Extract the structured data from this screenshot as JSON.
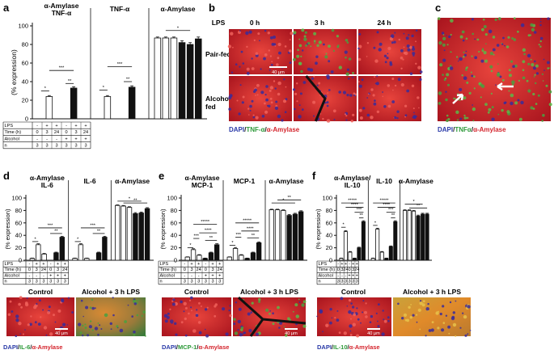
{
  "panels": {
    "a": "a",
    "b": "b",
    "c": "c",
    "d": "d",
    "e": "e",
    "f": "f"
  },
  "ylabel": "(% expression)",
  "yticks": [
    "0",
    "20",
    "40",
    "60",
    "80",
    "100"
  ],
  "row_labels": {
    "lps": "LPS",
    "time": "Time (h)",
    "alcohol": "Alcohol",
    "n": "n"
  },
  "table_values": {
    "lps": [
      "-",
      "+",
      "+",
      "-",
      "+",
      "+"
    ],
    "time": [
      "0",
      "3",
      "24",
      "0",
      "3",
      "24"
    ],
    "alcohol": [
      "-",
      "-",
      "-",
      "+",
      "+",
      "+"
    ],
    "n": [
      "3",
      "3",
      "3",
      "3",
      "3",
      "3"
    ]
  },
  "colors": {
    "control_bar": "#ffffff",
    "alcohol_bar": "#111111",
    "red": "#d4242c",
    "green": "#2e9a3a",
    "blue": "#2a3aa8"
  },
  "panel_a": {
    "titles": [
      "α-Amylase\nTNF-α",
      "TNF-α",
      "α-Amylase"
    ],
    "chart_data": {
      "type": "bar",
      "ylim": [
        0,
        100
      ],
      "groups": [
        {
          "title": "α-Amylase TNF-α",
          "values": [
            0,
            24,
            0,
            0,
            33,
            0
          ],
          "errors": [
            0,
            1,
            0,
            0,
            1.5,
            0
          ]
        },
        {
          "title": "TNF-α",
          "values": [
            0,
            24,
            0,
            0,
            34,
            0
          ],
          "errors": [
            0,
            1,
            0,
            0,
            1.5,
            0
          ]
        },
        {
          "title": "α-Amylase",
          "values": [
            87,
            87,
            87,
            82,
            80,
            86
          ],
          "errors": [
            1,
            1,
            1,
            2,
            2,
            2
          ]
        }
      ],
      "significance": [
        "*",
        "**",
        "***",
        "*",
        "**",
        "***",
        "*"
      ]
    }
  },
  "panel_b": {
    "lps": "LPS",
    "time_labels": [
      "0 h",
      "3 h",
      "24 h"
    ],
    "row_labels": [
      "Pair-fed",
      "Alcohol-\nfed"
    ],
    "scale": "40 μm",
    "legend": [
      {
        "t": "DAPI",
        "c": "blue"
      },
      {
        "t": "/",
        "c": "k"
      },
      {
        "t": "TNF-α",
        "c": "green"
      },
      {
        "t": "/",
        "c": "k"
      },
      {
        "t": "α-Amylase",
        "c": "red"
      }
    ]
  },
  "panel_c": {
    "legend": [
      {
        "t": "DAPI",
        "c": "blue"
      },
      {
        "t": "/",
        "c": "k"
      },
      {
        "t": "TNFα",
        "c": "green"
      },
      {
        "t": "/",
        "c": "k"
      },
      {
        "t": "α-Amylase",
        "c": "red"
      }
    ]
  },
  "panel_d": {
    "titles": [
      "α-Amylase\nIL-6",
      "IL-6",
      "α-Amylase"
    ],
    "chart_data": {
      "type": "bar",
      "ylim": [
        0,
        100
      ],
      "groups": [
        {
          "title": "α-Amylase IL-6",
          "values": [
            3,
            25,
            10,
            0,
            12,
            37
          ],
          "errors": [
            0.5,
            1.5,
            1,
            0,
            1,
            1.5
          ]
        },
        {
          "title": "IL-6",
          "values": [
            3,
            25,
            3,
            0,
            12,
            37
          ],
          "errors": [
            0.5,
            1.5,
            0.5,
            0,
            1,
            1.5
          ]
        },
        {
          "title": "α-Amylase",
          "values": [
            88,
            87,
            85,
            75,
            76,
            83
          ],
          "errors": [
            1,
            1,
            1,
            1.5,
            1.5,
            1.5
          ]
        }
      ],
      "significance": [
        "*",
        "**",
        "***",
        "*",
        "**",
        "***",
        "*",
        "**"
      ]
    },
    "image_labels": [
      "Control",
      "Alcohol + 3 h LPS"
    ],
    "scale": "40 μm",
    "legend": [
      {
        "t": "DAPI",
        "c": "blue"
      },
      {
        "t": "/",
        "c": "k"
      },
      {
        "t": "IL-6",
        "c": "green"
      },
      {
        "t": "/",
        "c": "k"
      },
      {
        "t": "α-Amylase",
        "c": "red"
      }
    ]
  },
  "panel_e": {
    "titles": [
      "α-Amylase\nMCP-1",
      "MCP-1",
      "α-Amylase"
    ],
    "chart_data": {
      "type": "bar",
      "ylim": [
        0,
        100
      ],
      "groups": [
        {
          "title": "α-Amylase MCP-1",
          "values": [
            5,
            17,
            8,
            3,
            12,
            25
          ],
          "errors": [
            0.5,
            1.5,
            1,
            0.5,
            1,
            1.5
          ]
        },
        {
          "title": "MCP-1",
          "values": [
            5,
            19,
            8,
            3,
            12,
            28
          ],
          "errors": [
            0.5,
            1.5,
            1,
            0.5,
            1,
            1.5
          ]
        },
        {
          "title": "α-Amylase",
          "values": [
            81,
            81,
            80,
            72,
            74,
            78
          ],
          "errors": [
            1,
            1,
            1,
            1.5,
            1.5,
            1.5
          ]
        }
      ],
      "significance": [
        "*",
        "***",
        "**",
        "*****",
        "****",
        "*",
        "***",
        "*****",
        "**",
        "****",
        "*",
        "**"
      ]
    },
    "image_labels": [
      "Control",
      "Alcohol + 3 h LPS"
    ],
    "scale": "40 μm",
    "legend": [
      {
        "t": "DAPI",
        "c": "blue"
      },
      {
        "t": "/",
        "c": "k"
      },
      {
        "t": "MCP-1",
        "c": "green"
      },
      {
        "t": "/",
        "c": "k"
      },
      {
        "t": "α-Amylase",
        "c": "red"
      }
    ]
  },
  "panel_f": {
    "titles": [
      "α-Amylase/\nIL-10",
      "IL-10",
      "α-Amylase"
    ],
    "chart_data": {
      "type": "bar",
      "ylim": [
        0,
        100
      ],
      "groups": [
        {
          "title": "α-Amylase/IL-10",
          "values": [
            3,
            46,
            13,
            3,
            20,
            62
          ],
          "errors": [
            0.5,
            1.5,
            1,
            0.5,
            1,
            1.5
          ]
        },
        {
          "title": "IL-10",
          "values": [
            3,
            50,
            13,
            3,
            22,
            62
          ],
          "errors": [
            0.5,
            1.5,
            1,
            0.5,
            1,
            1.5
          ]
        },
        {
          "title": "α-Amylase",
          "values": [
            80,
            80,
            79,
            71,
            74,
            74
          ],
          "errors": [
            1,
            1,
            1,
            1.5,
            1.5,
            1.5
          ]
        }
      ],
      "significance": [
        "*****",
        "****",
        "***",
        "**",
        "*",
        "*****",
        "****",
        "***",
        "**",
        "*",
        "*",
        "**"
      ]
    },
    "image_labels": [
      "Control",
      "Alcohol + 3 h LPS"
    ],
    "scale": "40 μm",
    "legend": [
      {
        "t": "DAPI",
        "c": "blue"
      },
      {
        "t": "/",
        "c": "k"
      },
      {
        "t": "IL-10",
        "c": "green"
      },
      {
        "t": "/",
        "c": "k"
      },
      {
        "t": "α-Amylase",
        "c": "red"
      }
    ]
  }
}
